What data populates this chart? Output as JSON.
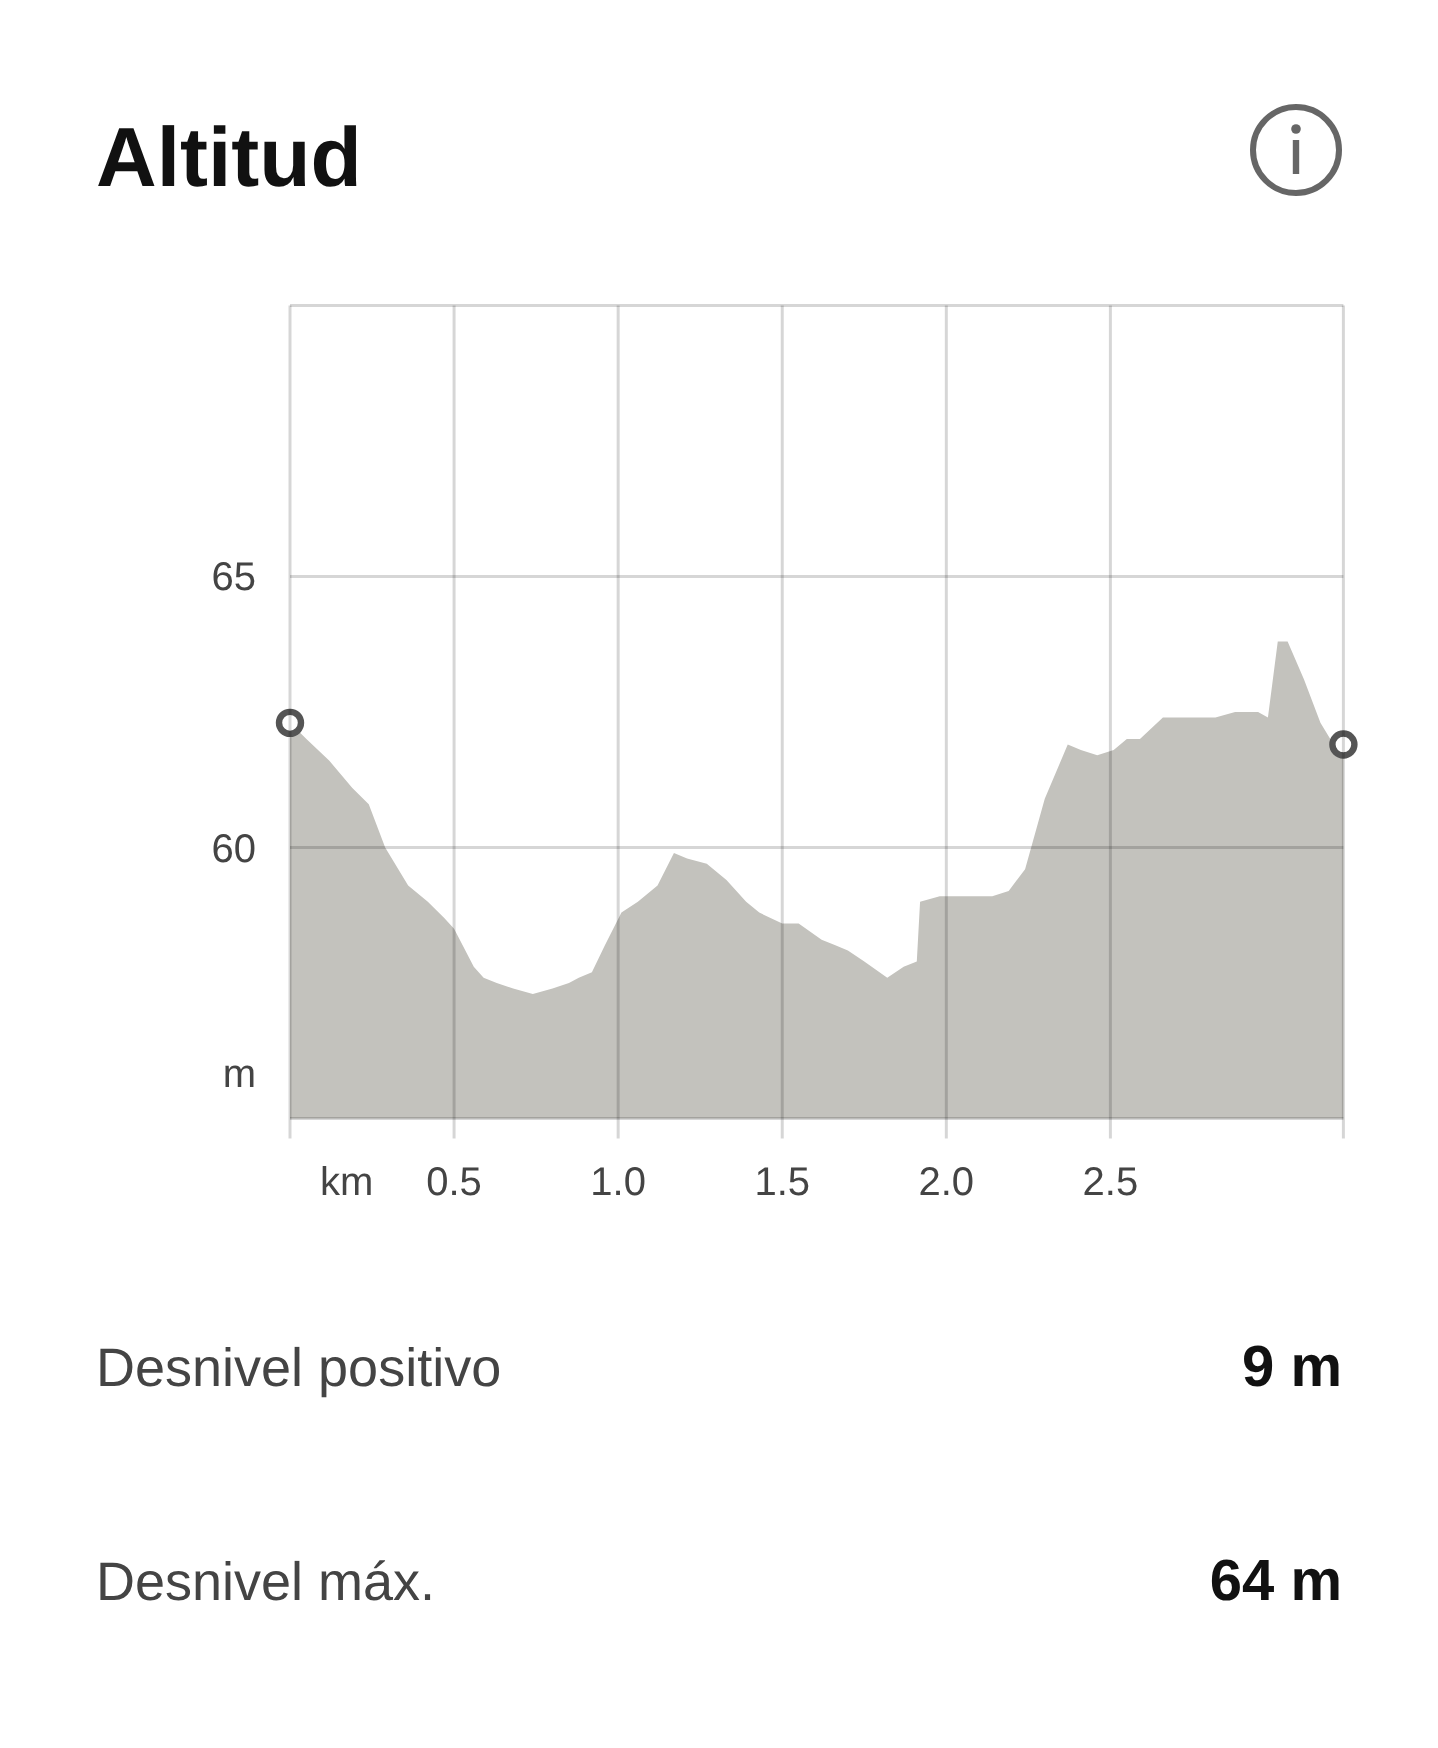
{
  "chart_data": [
    {
      "type": "area",
      "title": "Altitud",
      "xlabel": "km",
      "ylabel": "m",
      "xlim": [
        0,
        3.21
      ],
      "ylim": [
        55,
        70
      ],
      "xticks": [
        0.5,
        {
          "value": 1,
          "label": "1.0"
        },
        1.5,
        {
          "value": 2,
          "label": "2.0"
        },
        2.5
      ],
      "yticks": [
        60,
        65
      ],
      "grid": true,
      "series": [
        {
          "type": "area",
          "color": "#c3c2bd",
          "x": [
            0,
            0.05,
            0.12,
            0.19,
            0.24,
            0.29,
            0.36,
            0.42,
            0.47,
            0.5,
            0.56,
            0.59,
            0.63,
            0.68,
            0.74,
            0.8,
            0.85,
            0.88,
            0.92,
            0.96,
            1.01,
            1.06,
            1.12,
            1.17,
            1.21,
            1.27,
            1.33,
            1.39,
            1.43,
            1.5,
            1.55,
            1.62,
            1.66,
            1.7,
            1.75,
            1.82,
            1.87,
            1.91,
            1.92,
            1.98,
            2.14,
            2.19,
            2.24,
            2.3,
            2.37,
            2.41,
            2.46,
            2.51,
            2.55,
            2.59,
            2.66,
            2.71,
            2.82,
            2.88,
            2.92,
            2.95,
            2.98,
            3.01,
            3.04,
            3.09,
            3.14,
            3.17,
            3.21
          ],
          "values": [
            62.3,
            62.0,
            61.6,
            61.1,
            60.8,
            60.0,
            59.3,
            59.0,
            58.7,
            58.5,
            57.8,
            57.6,
            57.5,
            57.4,
            57.3,
            57.4,
            57.5,
            57.6,
            57.7,
            58.2,
            58.8,
            59.0,
            59.3,
            59.9,
            59.8,
            59.7,
            59.4,
            59.0,
            58.8,
            58.6,
            58.6,
            58.3,
            58.2,
            58.1,
            57.9,
            57.6,
            57.8,
            57.9,
            59.0,
            59.1,
            59.1,
            59.2,
            59.6,
            60.9,
            61.9,
            61.8,
            61.7,
            61.8,
            62.0,
            62.0,
            62.4,
            62.4,
            62.4,
            62.5,
            62.5,
            62.5,
            62.4,
            63.8,
            63.8,
            63.1,
            62.3,
            62.0,
            61.9
          ]
        },
        {
          "type": "scatter",
          "marker": "circle",
          "color": "#555555",
          "x": [
            0,
            3.21
          ],
          "values": [
            62.3,
            61.9
          ]
        }
      ]
    },
    {
      "type": "other",
      "annotations": [
        "Desnivel positivo",
        "9 m",
        "Desnivel máx.",
        "64 m"
      ]
    }
  ]
}
